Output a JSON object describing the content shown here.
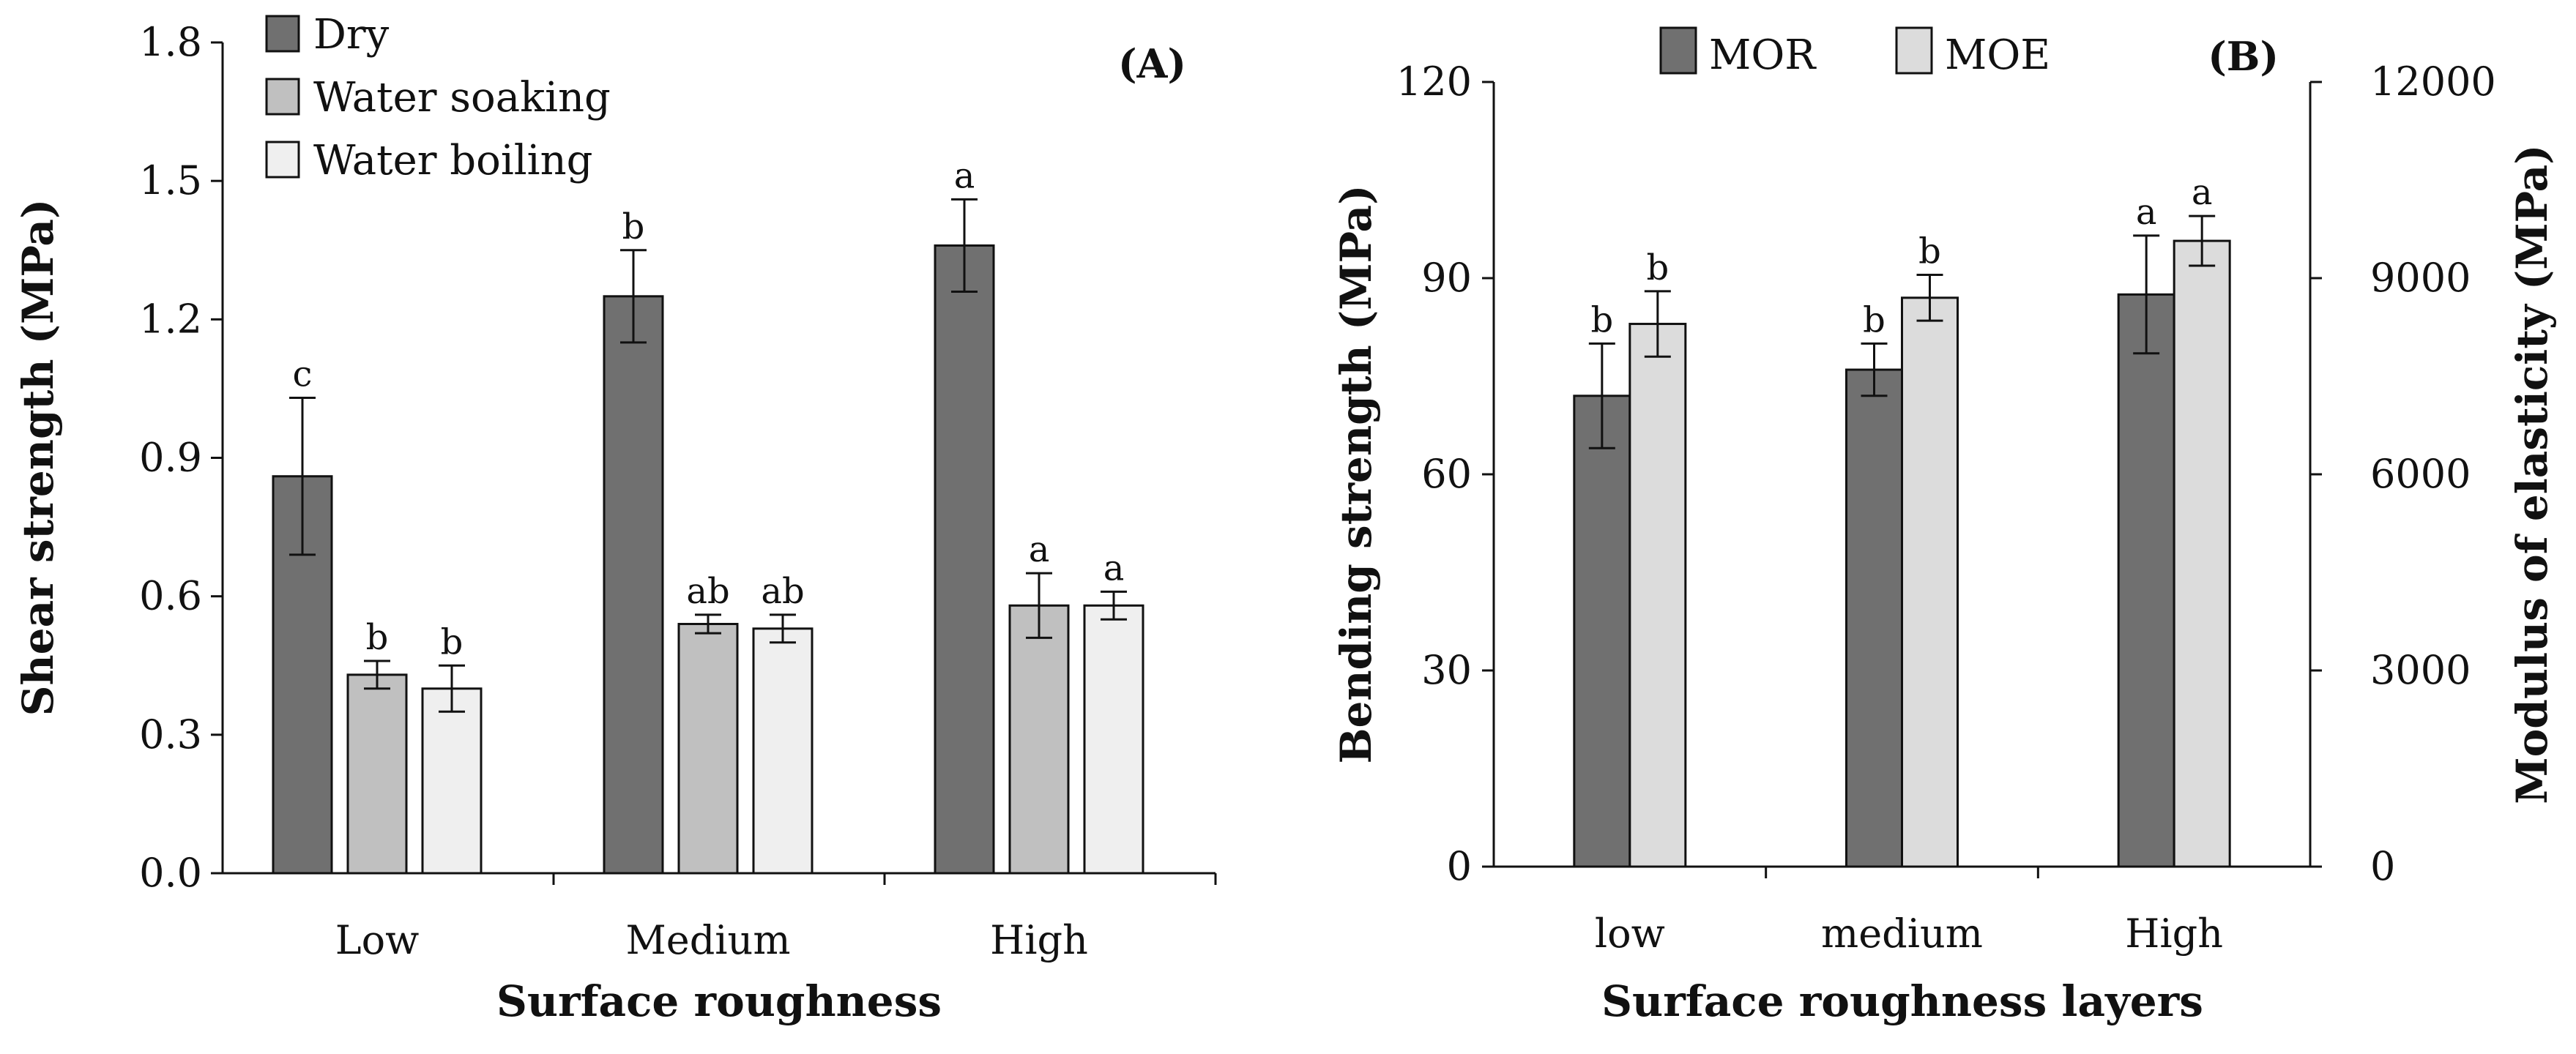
{
  "chart_data": [
    {
      "panel": "(A)",
      "type": "bar",
      "ylabel": "Shear strength (MPa)",
      "xlabel": "Surface roughness",
      "ylim": [
        0,
        1.8
      ],
      "yticks": [
        "0.0",
        "0.3",
        "0.6",
        "0.9",
        "1.2",
        "1.5",
        "1.8"
      ],
      "categories": [
        "Low",
        "Medium",
        "High"
      ],
      "series": [
        {
          "name": "Dry",
          "color": "#707070",
          "values": [
            0.86,
            1.25,
            1.36
          ],
          "errors": [
            0.17,
            0.1,
            0.1
          ],
          "letters": [
            "c",
            "b",
            "a"
          ]
        },
        {
          "name": "Water soaking",
          "color": "#c0c0c0",
          "values": [
            0.43,
            0.54,
            0.58
          ],
          "errors": [
            0.03,
            0.02,
            0.07
          ],
          "letters": [
            "b",
            "ab",
            "a"
          ]
        },
        {
          "name": "Water boiling",
          "color": "#efefef",
          "values": [
            0.4,
            0.53,
            0.58
          ],
          "errors": [
            0.05,
            0.03,
            0.03
          ],
          "letters": [
            "b",
            "ab",
            "a"
          ]
        }
      ]
    },
    {
      "panel": "(B)",
      "type": "bar",
      "ylabel": "Bending strength (MPa)",
      "y2label": "Modulus of elasticity (MPa)",
      "xlabel": "Surface roughness layers",
      "ylim": [
        0,
        120
      ],
      "y2lim": [
        0,
        12000
      ],
      "yticks": [
        "0",
        "30",
        "60",
        "90",
        "120"
      ],
      "y2ticks": [
        "0",
        "3000",
        "6000",
        "9000",
        "12000"
      ],
      "categories": [
        "low",
        "medium",
        "High"
      ],
      "series": [
        {
          "name": "MOR",
          "axis": "left",
          "color": "#707070",
          "values": [
            72,
            76,
            87.5
          ],
          "errors": [
            8,
            4,
            9
          ],
          "letters": [
            "b",
            "b",
            "a"
          ]
        },
        {
          "name": "MOE",
          "axis": "right",
          "color": "#dcdcdc",
          "values": [
            8300,
            8700,
            9570
          ],
          "errors": [
            500,
            350,
            380
          ],
          "letters": [
            "b",
            "b",
            "a"
          ]
        }
      ]
    }
  ]
}
